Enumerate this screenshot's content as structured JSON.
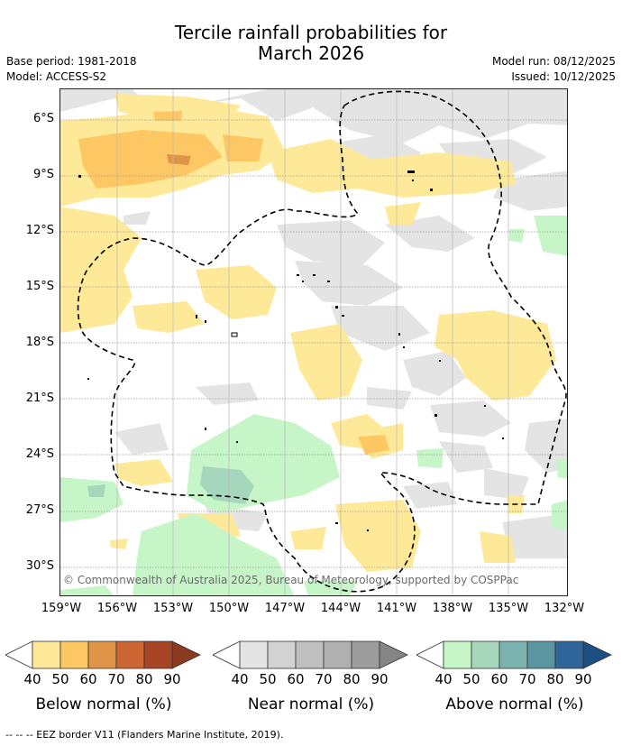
{
  "title_line1": "Tercile rainfall probabilities for",
  "title_line2": "March 2026",
  "base_period": "Base period: 1981-2018",
  "model": "Model: ACCESS-S2",
  "model_run": "Model run: 08/12/2025",
  "issued": "Issued: 10/12/2025",
  "lat_labels": [
    "6°S",
    "9°S",
    "12°S",
    "15°S",
    "18°S",
    "21°S",
    "24°S",
    "27°S",
    "30°S"
  ],
  "lon_labels": [
    "159°W",
    "156°W",
    "153°W",
    "150°W",
    "147°W",
    "144°W",
    "141°W",
    "138°W",
    "135°W",
    "132°W"
  ],
  "copyright": "© Commonwealth of Australia 2025, Bureau of Meteorology, supported by COSPPac",
  "colorbars": [
    {
      "title": "Below normal (%)",
      "ticks": [
        "40",
        "50",
        "60",
        "70",
        "80",
        "90"
      ],
      "colors": [
        "#ffffff",
        "#fee998",
        "#fdc864",
        "#e09448",
        "#cc6633",
        "#a84526",
        "#8a3b22"
      ]
    },
    {
      "title": "Near normal (%)",
      "ticks": [
        "40",
        "50",
        "60",
        "70",
        "80",
        "90"
      ],
      "colors": [
        "#ffffff",
        "#e4e4e4",
        "#d2d2d2",
        "#c0c0c0",
        "#b0b0b0",
        "#9c9c9c",
        "#858585"
      ]
    },
    {
      "title": "Above normal (%)",
      "ticks": [
        "40",
        "50",
        "60",
        "70",
        "80",
        "90"
      ],
      "colors": [
        "#ffffff",
        "#c6f5c8",
        "#a6d6bb",
        "#7ab3ad",
        "#5a95a0",
        "#2f6598",
        "#1e4f82"
      ]
    }
  ],
  "footer": "--  --  -- EEZ border V11 (Flanders Marine Institute, 2019).",
  "colors": {
    "below_50": "#fee998",
    "below_60": "#fdc864",
    "below_70": "#e09448",
    "near_50": "#e4e4e4",
    "above_50": "#c6f5c8",
    "above_60": "#a6d6bb"
  }
}
